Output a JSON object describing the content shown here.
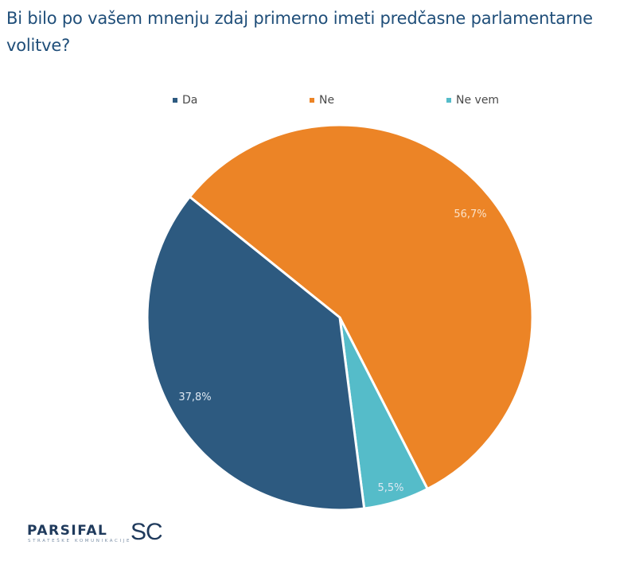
{
  "title": "Bi bilo po vašem mnenju zdaj primerno imeti predčasne parlamentarne volitve?",
  "legend": [
    {
      "label": "Da",
      "color": "#2d5a80"
    },
    {
      "label": "Ne",
      "color": "#ec8426"
    },
    {
      "label": "Ne vem",
      "color": "#55bcc9"
    }
  ],
  "logo": {
    "main": "PARSIFAL",
    "suffix": "SC",
    "tagline": "STRATEŠKE KOMUNIKACIJE"
  },
  "chart_data": {
    "type": "pie",
    "title": "Bi bilo po vašem mnenju zdaj primerno imeti predčasne parlamentarne volitve?",
    "categories": [
      "Da",
      "Ne",
      "Ne vem"
    ],
    "values": [
      37.8,
      56.7,
      5.5
    ],
    "labels": [
      "37,8%",
      "56,7%",
      "5,5%"
    ],
    "colors": [
      "#2d5a80",
      "#ec8426",
      "#55bcc9"
    ],
    "legend_position": "top"
  }
}
